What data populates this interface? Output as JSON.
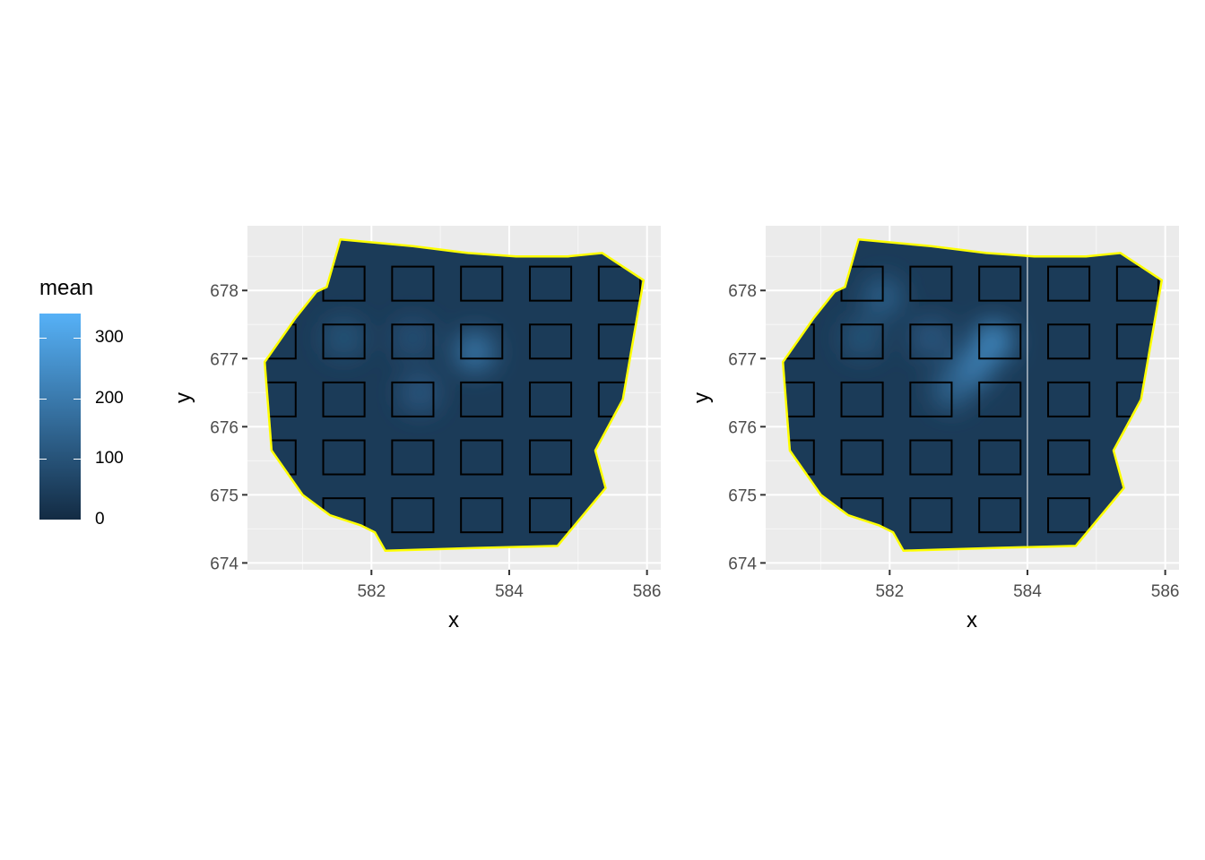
{
  "chart_data": [
    {
      "type": "heatmap",
      "panel": "left",
      "xlabel": "x",
      "ylabel": "y",
      "xlim": [
        580.2,
        586.2
      ],
      "ylim": [
        673.9,
        678.95
      ],
      "x_ticks": [
        582,
        584,
        586
      ],
      "y_ticks": [
        674,
        675,
        676,
        677,
        678
      ],
      "x_tick_labels": [
        "582",
        "584",
        "586"
      ],
      "y_tick_labels": [
        "674",
        "675",
        "676",
        "677",
        "678"
      ],
      "grid": true,
      "boundary_color": "#ffff00",
      "boundary": [
        [
          581.55,
          678.75
        ],
        [
          582.6,
          678.65
        ],
        [
          583.4,
          678.55
        ],
        [
          584.1,
          678.5
        ],
        [
          584.85,
          678.5
        ],
        [
          585.35,
          678.55
        ],
        [
          585.95,
          678.15
        ],
        [
          585.65,
          676.4
        ],
        [
          585.25,
          675.65
        ],
        [
          585.4,
          675.1
        ],
        [
          584.7,
          674.25
        ],
        [
          583.5,
          674.22
        ],
        [
          582.2,
          674.18
        ],
        [
          582.05,
          674.45
        ],
        [
          581.85,
          674.55
        ],
        [
          581.4,
          674.7
        ],
        [
          581.0,
          675.0
        ],
        [
          580.55,
          675.65
        ],
        [
          580.45,
          676.95
        ],
        [
          580.9,
          677.6
        ],
        [
          581.2,
          677.98
        ],
        [
          581.35,
          678.05
        ]
      ],
      "quadrats": [
        [
          {
            "x": 581.6,
            "y": 678.1
          },
          {
            "x": 582.6,
            "y": 678.1
          },
          {
            "x": 583.6,
            "y": 678.1
          },
          {
            "x": 584.6,
            "y": 678.1
          },
          {
            "x": 585.6,
            "y": 678.1
          }
        ],
        [
          {
            "x": 580.6,
            "y": 677.25
          },
          {
            "x": 581.6,
            "y": 677.25
          },
          {
            "x": 582.6,
            "y": 677.25
          },
          {
            "x": 583.6,
            "y": 677.25
          },
          {
            "x": 584.6,
            "y": 677.25
          },
          {
            "x": 585.6,
            "y": 677.25
          }
        ],
        [
          {
            "x": 580.6,
            "y": 676.4
          },
          {
            "x": 581.6,
            "y": 676.4
          },
          {
            "x": 582.6,
            "y": 676.4
          },
          {
            "x": 583.6,
            "y": 676.4
          },
          {
            "x": 584.6,
            "y": 676.4
          },
          {
            "x": 585.6,
            "y": 676.4
          }
        ],
        [
          {
            "x": 580.6,
            "y": 675.55
          },
          {
            "x": 581.6,
            "y": 675.55
          },
          {
            "x": 582.6,
            "y": 675.55
          },
          {
            "x": 583.6,
            "y": 675.55
          },
          {
            "x": 584.6,
            "y": 675.55
          }
        ],
        [
          {
            "x": 581.6,
            "y": 674.7
          },
          {
            "x": 582.6,
            "y": 674.7
          },
          {
            "x": 583.6,
            "y": 674.7
          },
          {
            "x": 584.6,
            "y": 674.7
          }
        ]
      ],
      "hotspots": [
        {
          "x": 583.5,
          "y": 677.1,
          "value": 200
        },
        {
          "x": 582.7,
          "y": 676.5,
          "value": 120
        },
        {
          "x": 581.6,
          "y": 677.3,
          "value": 110
        },
        {
          "x": 582.6,
          "y": 677.3,
          "value": 100
        }
      ]
    },
    {
      "type": "heatmap",
      "panel": "right",
      "xlabel": "x",
      "ylabel": "y",
      "xlim": [
        580.2,
        586.2
      ],
      "ylim": [
        673.9,
        678.95
      ],
      "x_ticks": [
        582,
        584,
        586
      ],
      "y_ticks": [
        674,
        675,
        676,
        677,
        678
      ],
      "x_tick_labels": [
        "582",
        "584",
        "586"
      ],
      "y_tick_labels": [
        "674",
        "675",
        "676",
        "677",
        "678"
      ],
      "grid": true,
      "boundary_color": "#ffff00",
      "split_line_x": 584,
      "boundary": [
        [
          581.55,
          678.75
        ],
        [
          582.6,
          678.65
        ],
        [
          583.4,
          678.55
        ],
        [
          584.1,
          678.5
        ],
        [
          584.85,
          678.5
        ],
        [
          585.35,
          678.55
        ],
        [
          585.95,
          678.15
        ],
        [
          585.65,
          676.4
        ],
        [
          585.25,
          675.65
        ],
        [
          585.4,
          675.1
        ],
        [
          584.7,
          674.25
        ],
        [
          583.5,
          674.22
        ],
        [
          582.2,
          674.18
        ],
        [
          582.05,
          674.45
        ],
        [
          581.85,
          674.55
        ],
        [
          581.4,
          674.7
        ],
        [
          581.0,
          675.0
        ],
        [
          580.55,
          675.65
        ],
        [
          580.45,
          676.95
        ],
        [
          580.9,
          677.6
        ],
        [
          581.2,
          677.98
        ],
        [
          581.35,
          678.05
        ]
      ],
      "quadrats": [
        [
          {
            "x": 581.6,
            "y": 678.1
          },
          {
            "x": 582.6,
            "y": 678.1
          },
          {
            "x": 583.6,
            "y": 678.1
          },
          {
            "x": 584.6,
            "y": 678.1
          },
          {
            "x": 585.6,
            "y": 678.1
          }
        ],
        [
          {
            "x": 580.6,
            "y": 677.25
          },
          {
            "x": 581.6,
            "y": 677.25
          },
          {
            "x": 582.6,
            "y": 677.25
          },
          {
            "x": 583.6,
            "y": 677.25
          },
          {
            "x": 584.6,
            "y": 677.25
          },
          {
            "x": 585.6,
            "y": 677.25
          }
        ],
        [
          {
            "x": 580.6,
            "y": 676.4
          },
          {
            "x": 581.6,
            "y": 676.4
          },
          {
            "x": 582.6,
            "y": 676.4
          },
          {
            "x": 583.6,
            "y": 676.4
          },
          {
            "x": 584.6,
            "y": 676.4
          },
          {
            "x": 585.6,
            "y": 676.4
          }
        ],
        [
          {
            "x": 580.6,
            "y": 675.55
          },
          {
            "x": 581.6,
            "y": 675.55
          },
          {
            "x": 582.6,
            "y": 675.55
          },
          {
            "x": 583.6,
            "y": 675.55
          },
          {
            "x": 584.6,
            "y": 675.55
          }
        ],
        [
          {
            "x": 581.6,
            "y": 674.7
          },
          {
            "x": 582.6,
            "y": 674.7
          },
          {
            "x": 583.6,
            "y": 674.7
          },
          {
            "x": 584.6,
            "y": 674.7
          }
        ]
      ],
      "hotspots": [
        {
          "x": 583.5,
          "y": 677.25,
          "value": 250
        },
        {
          "x": 583.2,
          "y": 676.85,
          "value": 220
        },
        {
          "x": 582.9,
          "y": 676.55,
          "value": 150
        },
        {
          "x": 581.9,
          "y": 677.9,
          "value": 140
        },
        {
          "x": 581.6,
          "y": 677.3,
          "value": 110
        },
        {
          "x": 582.6,
          "y": 677.3,
          "value": 120
        }
      ]
    }
  ],
  "legend": {
    "title": "mean",
    "labels": [
      "0",
      "100",
      "200",
      "300"
    ],
    "values": [
      0,
      100,
      200,
      300
    ],
    "range": [
      0,
      340
    ],
    "low_color": "#132b43",
    "high_color": "#56b1f7"
  },
  "colors": {
    "panel_background": "#ebebeb",
    "grid_major": "#ffffff",
    "quadrat_stroke": "#000000"
  }
}
